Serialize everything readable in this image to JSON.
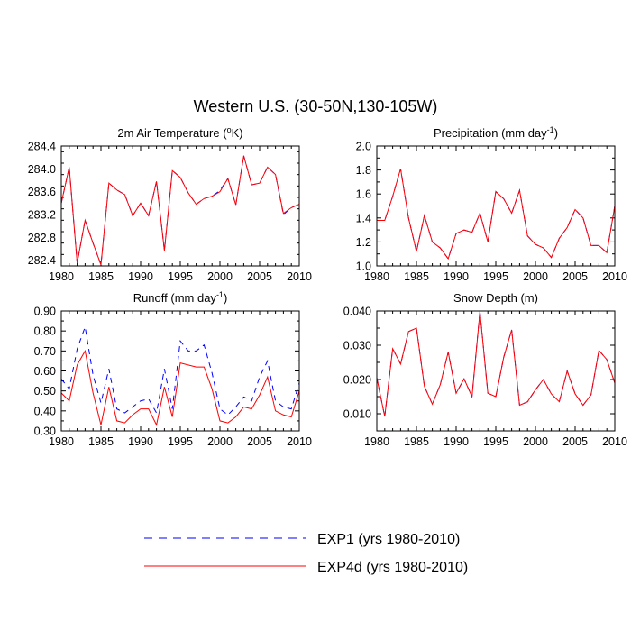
{
  "figure_title": "Western U.S. (30-50N,130-105W)",
  "legend": [
    {
      "label": "EXP1 (yrs 1980-2010)",
      "color": "#0000ff",
      "dash": "dashed"
    },
    {
      "label": "EXP4d (yrs 1980-2010)",
      "color": "#ff0000",
      "dash": "solid"
    }
  ],
  "chart_data": [
    {
      "type": "line",
      "title": "2m Air Temperature (",
      "title_sup": "o",
      "title_suffix": "K)",
      "xlim": [
        1980,
        2010
      ],
      "ylim": [
        282.3,
        284.4
      ],
      "xticks": [
        1980,
        1985,
        1990,
        1995,
        2000,
        2005,
        2010
      ],
      "yticks": [
        282.4,
        282.8,
        283.2,
        283.6,
        284.0,
        284.4
      ],
      "ytick_labels": [
        "282.4",
        "282.8",
        "283.2",
        "283.6",
        "284.0",
        "284.4"
      ],
      "x": [
        1980,
        1981,
        1982,
        1983,
        1984,
        1985,
        1986,
        1987,
        1988,
        1989,
        1990,
        1991,
        1992,
        1993,
        1994,
        1995,
        1996,
        1997,
        1998,
        1999,
        2000,
        2001,
        2002,
        2003,
        2004,
        2005,
        2006,
        2007,
        2008,
        2009,
        2010
      ],
      "series": [
        {
          "name": "EXP1 (yrs 1980-2010)",
          "values": [
            283.4,
            284.03,
            282.35,
            283.1,
            282.7,
            282.32,
            283.75,
            283.63,
            283.55,
            283.18,
            283.4,
            283.18,
            283.78,
            282.57,
            283.97,
            283.85,
            283.58,
            283.38,
            283.48,
            283.52,
            283.62,
            283.83,
            283.37,
            284.23,
            283.72,
            283.75,
            284.03,
            283.9,
            283.2,
            283.32,
            283.38
          ]
        },
        {
          "name": "EXP4d (yrs 1980-2010)",
          "values": [
            283.4,
            284.03,
            282.35,
            283.1,
            282.7,
            282.32,
            283.75,
            283.63,
            283.55,
            283.18,
            283.4,
            283.18,
            283.78,
            282.57,
            283.97,
            283.85,
            283.58,
            283.38,
            283.48,
            283.52,
            283.6,
            283.83,
            283.37,
            284.23,
            283.72,
            283.75,
            284.03,
            283.9,
            283.22,
            283.32,
            283.38
          ]
        }
      ]
    },
    {
      "type": "line",
      "title": "Precipitation (mm day",
      "title_sup": "-1",
      "title_suffix": ")",
      "xlim": [
        1980,
        2010
      ],
      "ylim": [
        1.0,
        2.0
      ],
      "xticks": [
        1980,
        1985,
        1990,
        1995,
        2000,
        2005,
        2010
      ],
      "yticks": [
        1.0,
        1.2,
        1.4,
        1.6,
        1.8,
        2.0
      ],
      "ytick_labels": [
        "1.0",
        "1.2",
        "1.4",
        "1.6",
        "1.8",
        "2.0"
      ],
      "x": [
        1980,
        1981,
        1982,
        1983,
        1984,
        1985,
        1986,
        1987,
        1988,
        1989,
        1990,
        1991,
        1992,
        1993,
        1994,
        1995,
        1996,
        1997,
        1998,
        1999,
        2000,
        2001,
        2002,
        2003,
        2004,
        2005,
        2006,
        2007,
        2008,
        2009,
        2010
      ],
      "series": [
        {
          "name": "EXP1 (yrs 1980-2010)",
          "values": [
            1.38,
            1.38,
            1.58,
            1.81,
            1.4,
            1.12,
            1.42,
            1.2,
            1.15,
            1.06,
            1.27,
            1.3,
            1.28,
            1.44,
            1.2,
            1.62,
            1.56,
            1.44,
            1.63,
            1.25,
            1.18,
            1.15,
            1.07,
            1.23,
            1.32,
            1.47,
            1.4,
            1.17,
            1.17,
            1.11,
            1.5
          ]
        },
        {
          "name": "EXP4d (yrs 1980-2010)",
          "values": [
            1.38,
            1.38,
            1.58,
            1.81,
            1.4,
            1.12,
            1.42,
            1.2,
            1.15,
            1.06,
            1.27,
            1.3,
            1.28,
            1.44,
            1.2,
            1.62,
            1.56,
            1.44,
            1.63,
            1.25,
            1.18,
            1.15,
            1.07,
            1.23,
            1.32,
            1.47,
            1.4,
            1.17,
            1.17,
            1.11,
            1.5
          ]
        }
      ]
    },
    {
      "type": "line",
      "title": "Runoff (mm day",
      "title_sup": "-1",
      "title_suffix": ")",
      "xlim": [
        1980,
        2010
      ],
      "ylim": [
        0.3,
        0.9
      ],
      "xticks": [
        1980,
        1985,
        1990,
        1995,
        2000,
        2005,
        2010
      ],
      "yticks": [
        0.3,
        0.4,
        0.5,
        0.6,
        0.7,
        0.8,
        0.9
      ],
      "ytick_labels": [
        "0.30",
        "0.40",
        "0.50",
        "0.60",
        "0.70",
        "0.80",
        "0.90"
      ],
      "x": [
        1980,
        1981,
        1982,
        1983,
        1984,
        1985,
        1986,
        1987,
        1988,
        1989,
        1990,
        1991,
        1992,
        1993,
        1994,
        1995,
        1996,
        1997,
        1998,
        1999,
        2000,
        2001,
        2002,
        2003,
        2004,
        2005,
        2006,
        2007,
        2008,
        2009,
        2010
      ],
      "series": [
        {
          "name": "EXP1 (yrs 1980-2010)",
          "values": [
            0.56,
            0.51,
            0.71,
            0.82,
            0.58,
            0.44,
            0.61,
            0.41,
            0.39,
            0.42,
            0.45,
            0.46,
            0.39,
            0.61,
            0.41,
            0.75,
            0.7,
            0.7,
            0.73,
            0.59,
            0.41,
            0.38,
            0.42,
            0.47,
            0.45,
            0.57,
            0.65,
            0.45,
            0.42,
            0.41,
            0.54
          ]
        },
        {
          "name": "EXP4d (yrs 1980-2010)",
          "values": [
            0.49,
            0.45,
            0.63,
            0.7,
            0.49,
            0.33,
            0.52,
            0.35,
            0.34,
            0.38,
            0.41,
            0.41,
            0.33,
            0.52,
            0.37,
            0.64,
            0.63,
            0.62,
            0.62,
            0.51,
            0.35,
            0.34,
            0.37,
            0.42,
            0.41,
            0.48,
            0.57,
            0.4,
            0.38,
            0.37,
            0.5
          ]
        }
      ]
    },
    {
      "type": "line",
      "title": "Snow Depth (m)",
      "title_sup": "",
      "title_suffix": "",
      "xlim": [
        1980,
        2010
      ],
      "ylim": [
        0.005,
        0.04
      ],
      "xticks": [
        1980,
        1985,
        1990,
        1995,
        2000,
        2005,
        2010
      ],
      "yticks": [
        0.01,
        0.02,
        0.03,
        0.04
      ],
      "ytick_labels": [
        "0.010",
        "0.020",
        "0.030",
        "0.040"
      ],
      "x": [
        1980,
        1981,
        1982,
        1983,
        1984,
        1985,
        1986,
        1987,
        1988,
        1989,
        1990,
        1991,
        1992,
        1993,
        1994,
        1995,
        1996,
        1997,
        1998,
        1999,
        2000,
        2001,
        2002,
        2003,
        2004,
        2005,
        2006,
        2007,
        2008,
        2009,
        2010
      ],
      "series": [
        {
          "name": "EXP1 (yrs 1980-2010)",
          "values": [
            0.0205,
            0.0092,
            0.029,
            0.0245,
            0.034,
            0.035,
            0.018,
            0.0128,
            0.0185,
            0.028,
            0.016,
            0.0202,
            0.015,
            0.04,
            0.016,
            0.015,
            0.0265,
            0.0345,
            0.0125,
            0.0135,
            0.017,
            0.02,
            0.0158,
            0.0135,
            0.0225,
            0.0158,
            0.0125,
            0.0155,
            0.0285,
            0.0258,
            0.019
          ]
        },
        {
          "name": "EXP4d (yrs 1980-2010)",
          "values": [
            0.0205,
            0.0092,
            0.029,
            0.0245,
            0.034,
            0.035,
            0.018,
            0.0128,
            0.0185,
            0.028,
            0.016,
            0.0202,
            0.015,
            0.0398,
            0.016,
            0.015,
            0.0265,
            0.0345,
            0.0125,
            0.0135,
            0.017,
            0.02,
            0.0158,
            0.0135,
            0.0225,
            0.0158,
            0.0125,
            0.0155,
            0.0285,
            0.0258,
            0.019
          ]
        }
      ]
    }
  ]
}
